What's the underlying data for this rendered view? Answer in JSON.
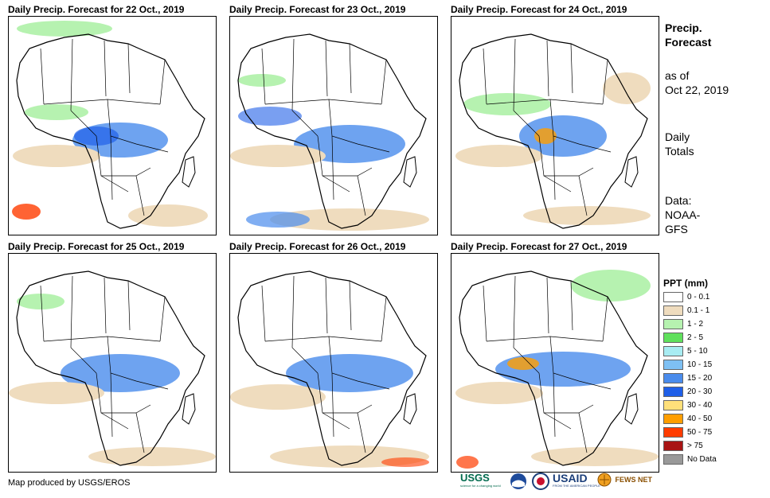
{
  "panels": [
    {
      "title": "Daily Precip. Forecast for 22 Oct., 2019"
    },
    {
      "title": "Daily Precip. Forecast for 23 Oct., 2019"
    },
    {
      "title": "Daily Precip. Forecast for 24 Oct., 2019"
    },
    {
      "title": "Daily Precip. Forecast for 25 Oct., 2019"
    },
    {
      "title": "Daily Precip. Forecast for 26 Oct., 2019"
    },
    {
      "title": "Daily Precip. Forecast for 27 Oct., 2019"
    }
  ],
  "side_info": {
    "heading_line1": "Precip.",
    "heading_line2": "Forecast",
    "asof_line1": "as of",
    "asof_line2": "Oct 22, 2019",
    "totals_line1": "Daily",
    "totals_line2": "Totals",
    "data_line1": "Data:",
    "data_line2": "NOAA-",
    "data_line3": "GFS"
  },
  "legend": {
    "title": "PPT (mm)",
    "items": [
      {
        "label": "0 - 0.1",
        "color": "#ffffff"
      },
      {
        "label": "0.1 - 1",
        "color": "#efdcbe"
      },
      {
        "label": "1 - 2",
        "color": "#b6f2b0"
      },
      {
        "label": "2 - 5",
        "color": "#5fe05c"
      },
      {
        "label": "5 - 10",
        "color": "#a8ecf2"
      },
      {
        "label": "10 - 15",
        "color": "#7ec0f3"
      },
      {
        "label": "15 - 20",
        "color": "#4a8cec"
      },
      {
        "label": "20 - 30",
        "color": "#1f5fe8"
      },
      {
        "label": "30 - 40",
        "color": "#ffe07a"
      },
      {
        "label": "40 - 50",
        "color": "#ff9e00"
      },
      {
        "label": "50 - 75",
        "color": "#ff3c00"
      },
      {
        "label": "> 75",
        "color": "#a81414"
      },
      {
        "label": "No Data",
        "color": "#999999"
      }
    ]
  },
  "credit": "Map produced by USGS/EROS",
  "logos": {
    "usgs": "USGS",
    "usgs_tagline": "science for a changing world",
    "usaid": "USAID",
    "usaid_tagline": "FROM THE AMERICAN PEOPLE",
    "fewsnet": "FEWS NET"
  }
}
